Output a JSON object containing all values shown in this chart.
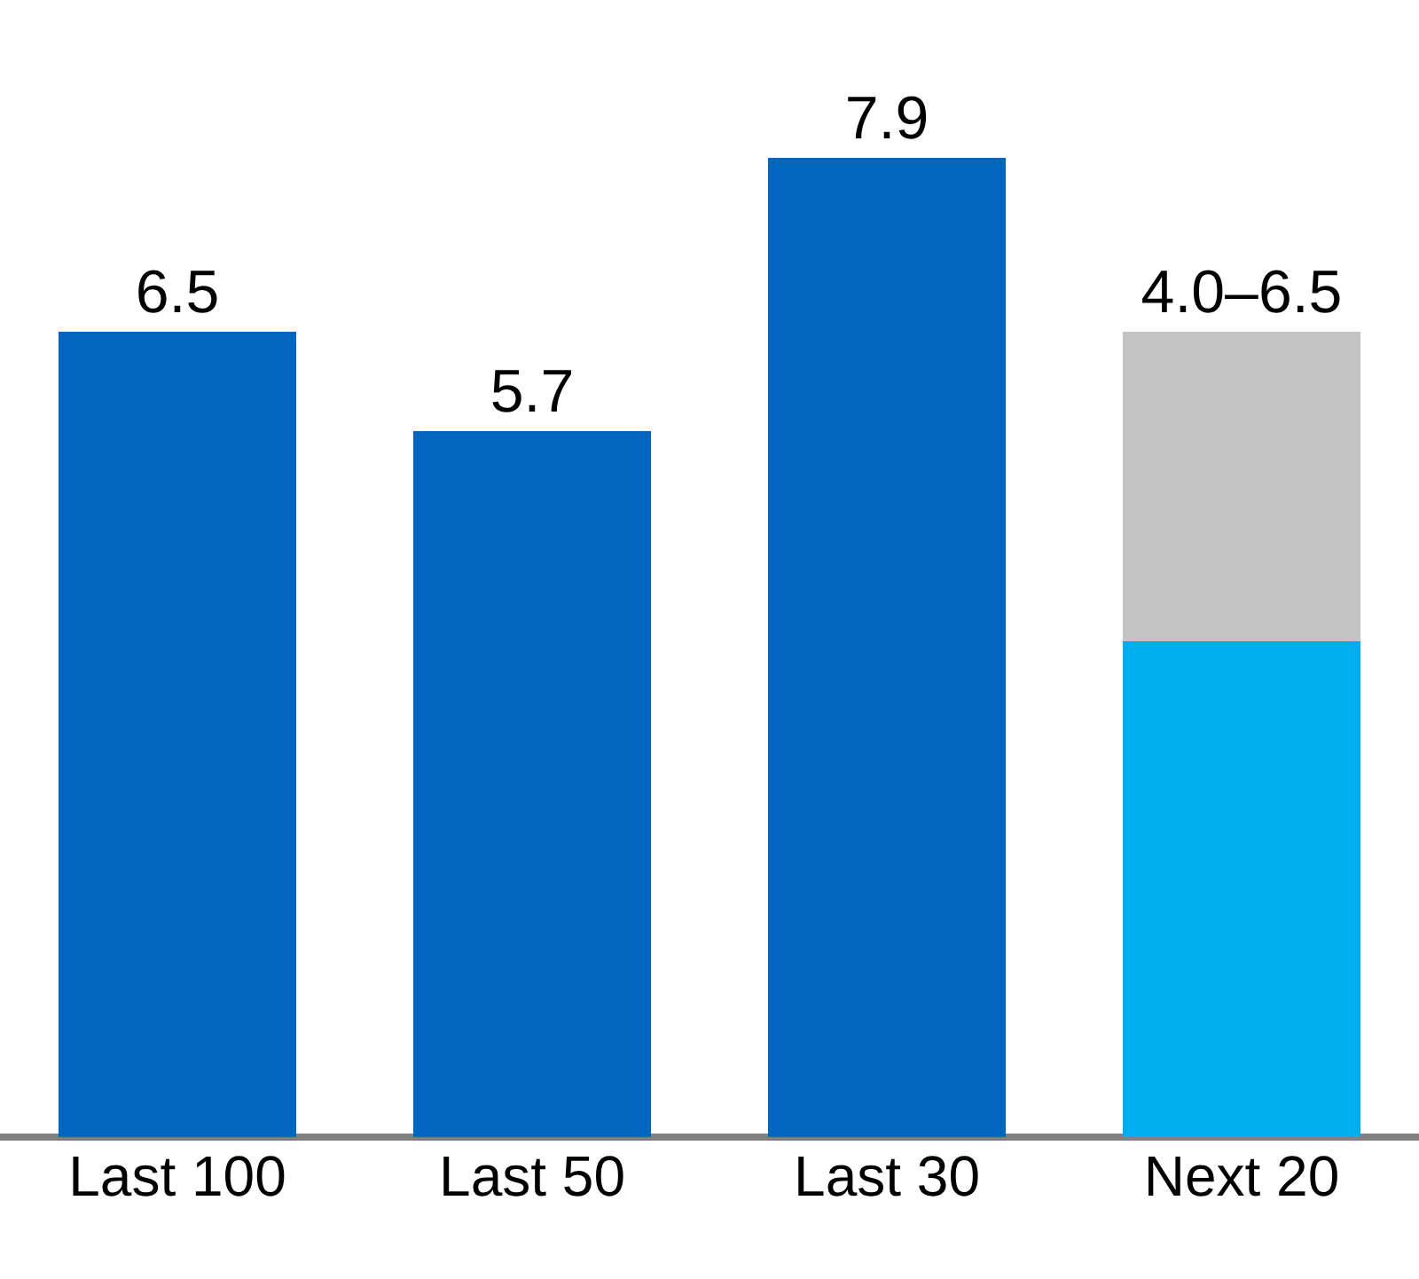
{
  "chart_data": {
    "type": "bar",
    "stacked": true,
    "tick_labels": "x",
    "categories": [
      "Last 100",
      "Last 50",
      "Last 30",
      "Next 20"
    ],
    "series": [
      {
        "colors": [
          "#0066bf",
          "#0066bf",
          "#0066bf",
          "#00adef"
        ],
        "values": [
          6.5,
          5.7,
          7.9,
          4.0
        ],
        "value_labels": [
          "6.5",
          "5.7",
          "7.9",
          null
        ]
      },
      {
        "color": "#c4c4c4",
        "values": [
          null,
          null,
          null,
          2.5
        ],
        "value_labels": [
          null,
          null,
          null,
          "4.0–6.5"
        ]
      }
    ]
  }
}
